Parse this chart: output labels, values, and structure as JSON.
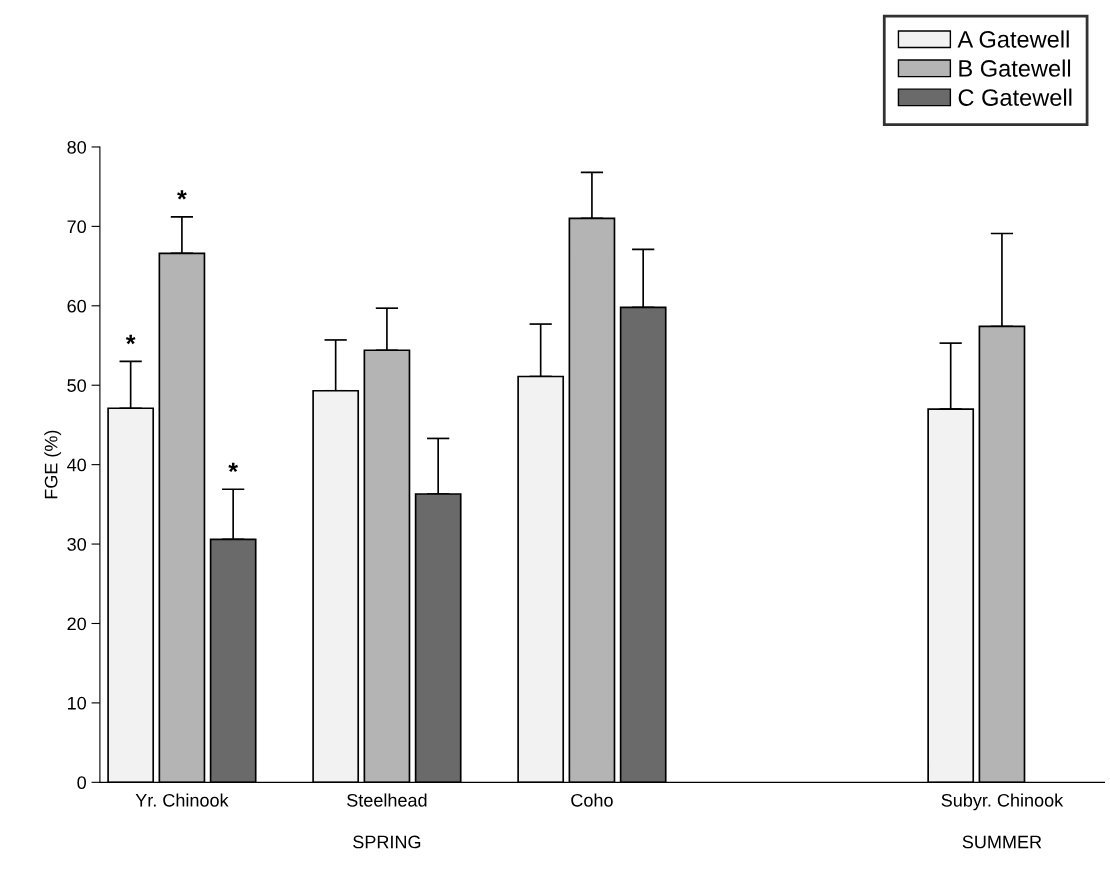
{
  "chart_data": {
    "type": "bar",
    "categories": [
      "Yr. Chinook",
      "Steelhead",
      "Coho",
      null,
      "Subyr. Chinook"
    ],
    "ylabel": "FGE (%)",
    "series": [
      {
        "name": "A Gatewell",
        "color": "#f2f2f2",
        "values": [
          47.1,
          49.3,
          51.1,
          null,
          47.0
        ],
        "errors": [
          5.9,
          6.4,
          6.6,
          null,
          8.3
        ],
        "value_labels": [
          "*",
          null,
          null,
          null,
          null
        ]
      },
      {
        "name": "B Gatewell",
        "color": "#b4b4b4",
        "values": [
          66.6,
          54.4,
          71.0,
          null,
          57.4
        ],
        "errors": [
          4.6,
          5.3,
          5.8,
          null,
          11.7
        ],
        "value_labels": [
          "*",
          null,
          null,
          null,
          null
        ]
      },
      {
        "name": "C Gatewell",
        "color": "#6a6a6a",
        "values": [
          30.6,
          36.3,
          59.8,
          null,
          null
        ],
        "errors": [
          6.3,
          7.0,
          7.3,
          null,
          null
        ],
        "value_labels": [
          "*",
          null,
          null,
          null,
          null
        ]
      }
    ],
    "ylim": [
      0,
      80
    ],
    "yticks": [
      0,
      10,
      20,
      30,
      40,
      50,
      60,
      70,
      80
    ],
    "legend": "top right",
    "grid": false,
    "annotations": [
      "SPRING",
      "SUMMER"
    ]
  }
}
